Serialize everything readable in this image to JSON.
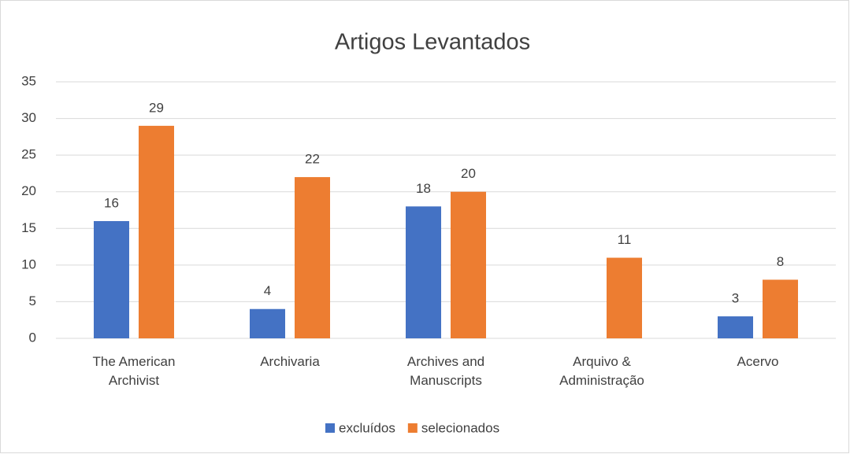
{
  "chart_data": {
    "type": "bar",
    "title": "Artigos Levantados",
    "categories": [
      "The American Archivist",
      "Archivaria",
      "Archives and Manuscripts",
      "Arquivo & Administração",
      "Acervo"
    ],
    "series": [
      {
        "name": "excluídos",
        "color": "#4472c4",
        "values": [
          16,
          4,
          18,
          null,
          3
        ]
      },
      {
        "name": "selecionados",
        "color": "#ed7d31",
        "values": [
          29,
          22,
          20,
          11,
          8
        ]
      }
    ],
    "ylim": [
      0,
      35
    ],
    "yticks": [
      0,
      5,
      10,
      15,
      20,
      25,
      30,
      35
    ],
    "grid": true,
    "legend": "bottom"
  }
}
